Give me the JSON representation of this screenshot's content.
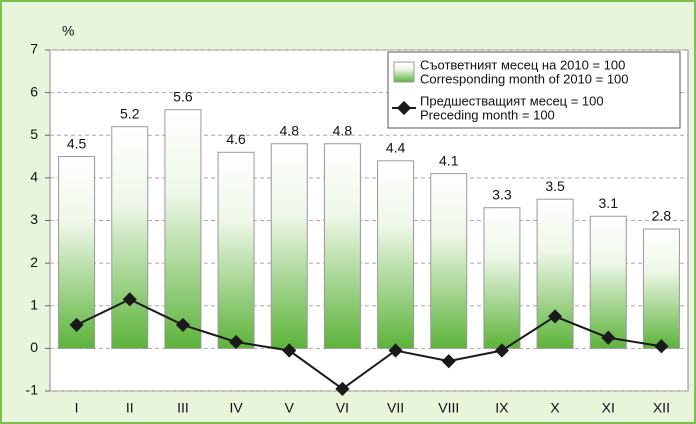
{
  "chart_data": {
    "type": "bar_line",
    "y_label": "%",
    "categories": [
      "I",
      "II",
      "III",
      "IV",
      "V",
      "VI",
      "VII",
      "VIII",
      "IX",
      "X",
      "XI",
      "XII"
    ],
    "series": [
      {
        "name": [
          "Съответният месец на 2010 = 100",
          "Corresponding month of 2010 = 100"
        ],
        "type": "bar",
        "color": "#5cb33a",
        "values": [
          4.5,
          5.2,
          5.6,
          4.6,
          4.8,
          4.8,
          4.4,
          4.1,
          3.3,
          3.5,
          3.1,
          2.8
        ]
      },
      {
        "name": [
          "Предшестващият месец = 100",
          "Preceding month = 100"
        ],
        "type": "line",
        "color": "#1a1a1a",
        "values": [
          0.55,
          1.15,
          0.55,
          0.15,
          -0.05,
          -0.95,
          -0.05,
          -0.3,
          -0.05,
          0.75,
          0.25,
          0.05
        ]
      }
    ],
    "ylim": [
      -1,
      7
    ],
    "yticks": [
      -1,
      0,
      1,
      2,
      3,
      4,
      5,
      6,
      7
    ],
    "grid": true,
    "legend": "top-right"
  }
}
